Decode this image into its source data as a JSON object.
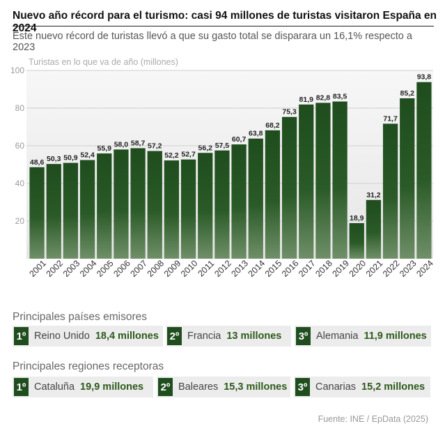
{
  "header": {
    "title": "Nuevo año récord para el turismo: casi 94 millones de turistas visitaron España en 2024",
    "subtitle": "Este nuevo récord de turistas llevó a que su gasto total se disparara un 16,1% respecto a 2023"
  },
  "chart_data": {
    "type": "bar",
    "ylabel": "Turistas en lo que va de año (millones)",
    "ylim": [
      0,
      100
    ],
    "yticks": [
      20,
      40,
      60,
      80,
      100
    ],
    "categories": [
      "2001",
      "2002",
      "2003",
      "2004",
      "2005",
      "2006",
      "2007",
      "2008",
      "2009",
      "2010",
      "2011",
      "2012",
      "2013",
      "2014",
      "2015",
      "2016",
      "2017",
      "2018",
      "2019",
      "2020",
      "2021",
      "2022",
      "2023",
      "2024"
    ],
    "values": [
      48.6,
      50.3,
      50.9,
      52.4,
      55.9,
      58.0,
      58.7,
      57.2,
      52.2,
      52.7,
      56.2,
      57.5,
      60.7,
      63.8,
      68.2,
      75.3,
      81.9,
      82.8,
      83.5,
      18.9,
      31.2,
      71.7,
      85.2,
      93.8
    ],
    "value_labels": [
      "48,6",
      "50,3",
      "50,9",
      "52,4",
      "55,9",
      "58,0",
      "58,7",
      "57,2",
      "52,2",
      "52,7",
      "56,2",
      "57,5",
      "60,7",
      "63,8",
      "68,2",
      "75,3",
      "81,9",
      "82,8",
      "83,5",
      "18,9",
      "31,2",
      "71,7",
      "85,2",
      "93,8"
    ],
    "bar_color": "#1f4d1e"
  },
  "countries": {
    "title": "Principales países emisores",
    "items": [
      {
        "rank": "1º",
        "name": "Reino Unido",
        "value": "18,4 millones"
      },
      {
        "rank": "2º",
        "name": "Francia",
        "value": "13 millones"
      },
      {
        "rank": "3º",
        "name": "Alemania",
        "value": "11,9 millones"
      }
    ]
  },
  "regions": {
    "title": "Principales regiones receptoras",
    "items": [
      {
        "rank": "1º",
        "name": "Cataluña",
        "value": "19,9 millones"
      },
      {
        "rank": "2º",
        "name": "Baleares",
        "value": "15,3 millones"
      },
      {
        "rank": "3º",
        "name": "Canarias",
        "value": "15,2 millones"
      }
    ]
  },
  "source": "Fuente: INE / EpData (2025)"
}
